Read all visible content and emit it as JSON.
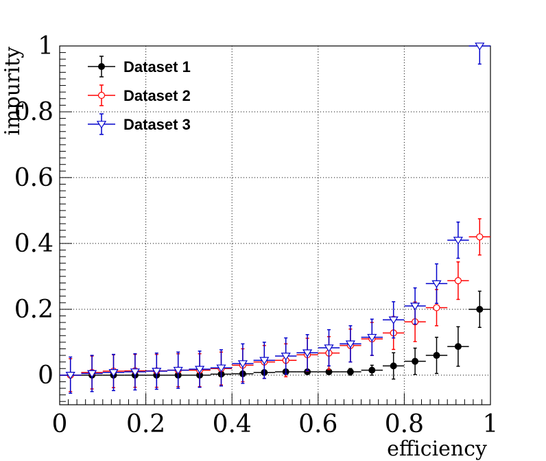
{
  "chart_data": {
    "type": "scatter",
    "xlabel": "efficiency",
    "ylabel": "impurity",
    "xlim": [
      0,
      1
    ],
    "ylim": [
      -0.09,
      1
    ],
    "grid": true,
    "legend_position": "top-left",
    "x_ticks": [
      "0",
      "0.2",
      "0.4",
      "0.6",
      "0.8",
      "1"
    ],
    "y_ticks": [
      "0",
      "0.2",
      "0.4",
      "0.6",
      "0.8",
      "1"
    ],
    "x": [
      0.025,
      0.075,
      0.125,
      0.175,
      0.225,
      0.275,
      0.325,
      0.375,
      0.425,
      0.475,
      0.525,
      0.575,
      0.625,
      0.675,
      0.725,
      0.775,
      0.825,
      0.875,
      0.925,
      0.975
    ],
    "x_bin_half_width": 0.025,
    "series": [
      {
        "name": "Dataset 1",
        "color": "#000000",
        "marker": "filled-circle",
        "values": [
          0.0,
          0.0,
          0.0,
          0.0,
          0.0,
          0.0,
          0.0,
          0.003,
          0.004,
          0.008,
          0.01,
          0.01,
          0.01,
          0.01,
          0.015,
          0.028,
          0.042,
          0.06,
          0.087,
          0.2
        ],
        "errors": [
          0.005,
          0.005,
          0.005,
          0.005,
          0.005,
          0.005,
          0.005,
          0.005,
          0.005,
          0.006,
          0.006,
          0.007,
          0.008,
          0.01,
          0.015,
          0.04,
          0.04,
          0.055,
          0.06,
          0.055
        ]
      },
      {
        "name": "Dataset 2",
        "color": "#ff0000",
        "marker": "open-circle",
        "values": [
          0.0,
          0.008,
          0.012,
          0.013,
          0.013,
          0.015,
          0.015,
          0.02,
          0.03,
          0.04,
          0.045,
          0.062,
          0.067,
          0.09,
          0.11,
          0.128,
          0.162,
          0.205,
          0.287,
          0.42
        ],
        "errors": [
          0.05,
          0.05,
          0.05,
          0.05,
          0.05,
          0.05,
          0.05,
          0.05,
          0.05,
          0.05,
          0.05,
          0.05,
          0.05,
          0.05,
          0.05,
          0.05,
          0.06,
          0.055,
          0.057,
          0.055
        ]
      },
      {
        "name": "Dataset 3",
        "color": "#0000cc",
        "marker": "open-triangle-down",
        "values": [
          0.0,
          0.005,
          0.008,
          0.01,
          0.012,
          0.015,
          0.018,
          0.022,
          0.035,
          0.045,
          0.058,
          0.068,
          0.083,
          0.095,
          0.115,
          0.168,
          0.21,
          0.278,
          0.41,
          1.0
        ],
        "errors": [
          0.055,
          0.055,
          0.055,
          0.055,
          0.055,
          0.055,
          0.055,
          0.055,
          0.06,
          0.055,
          0.055,
          0.055,
          0.055,
          0.055,
          0.055,
          0.055,
          0.055,
          0.06,
          0.055,
          0.055
        ]
      }
    ]
  }
}
